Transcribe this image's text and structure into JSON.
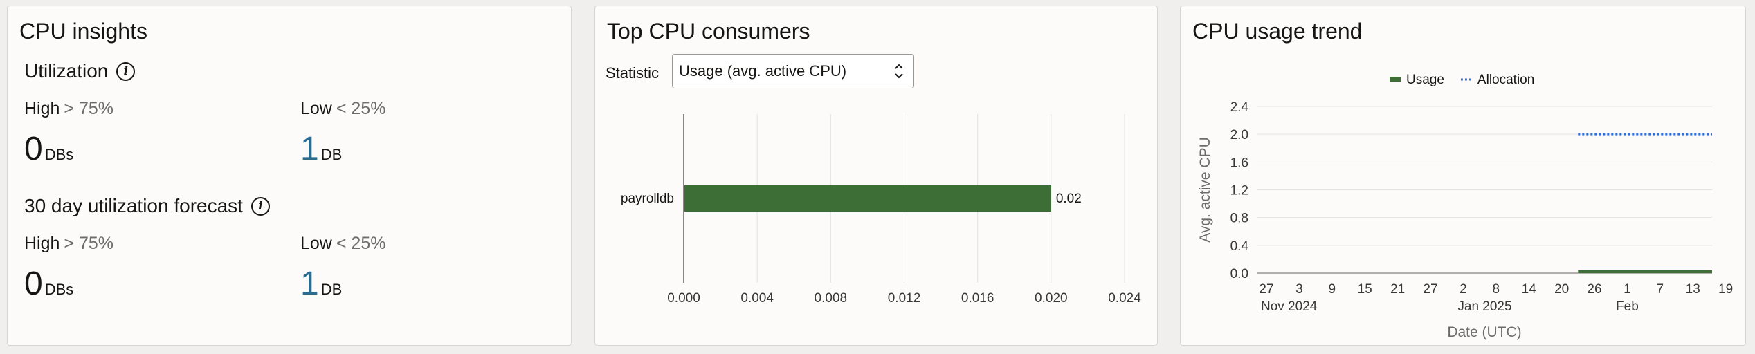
{
  "insights": {
    "title": "CPU insights",
    "utilization": {
      "title": "Utilization",
      "info_icon": "info-icon",
      "high": {
        "label": "High",
        "threshold": "> 75%",
        "count": "0",
        "unit": "DBs"
      },
      "low": {
        "label": "Low",
        "threshold": "< 25%",
        "count": "1",
        "unit": "DB"
      }
    },
    "forecast": {
      "title": "30 day utilization forecast",
      "info_icon": "info-icon",
      "high": {
        "label": "High",
        "threshold": "> 75%",
        "count": "0",
        "unit": "DBs"
      },
      "low": {
        "label": "Low",
        "threshold": "< 25%",
        "count": "1",
        "unit": "DB"
      }
    }
  },
  "consumers": {
    "title": "Top CPU consumers",
    "statistic_label": "Statistic",
    "statistic_value": "Usage (avg. active CPU)",
    "select_icon": "chevron-up-down-icon"
  },
  "trend": {
    "title": "CPU usage trend"
  },
  "chart_data": [
    {
      "type": "bar",
      "orientation": "horizontal",
      "categories": [
        "payrolldb"
      ],
      "values": [
        0.02
      ],
      "data_labels": [
        "0.02"
      ],
      "xlim": [
        0,
        0.024
      ],
      "x_ticks": [
        "0.000",
        "0.004",
        "0.008",
        "0.012",
        "0.016",
        "0.020",
        "0.024"
      ],
      "bar_color": "#3d6e36",
      "grid": true
    },
    {
      "type": "line",
      "xlabel": "Date (UTC)",
      "ylabel": "Avg. active CPU",
      "ylim": [
        0,
        2.4
      ],
      "y_ticks": [
        "0.0",
        "0.4",
        "0.8",
        "1.2",
        "1.6",
        "2.0",
        "2.4"
      ],
      "x_ticks": [
        {
          "day": "27",
          "month": "Nov 2024"
        },
        {
          "day": "3",
          "month": ""
        },
        {
          "day": "9",
          "month": ""
        },
        {
          "day": "15",
          "month": ""
        },
        {
          "day": "21",
          "month": ""
        },
        {
          "day": "27",
          "month": ""
        },
        {
          "day": "2",
          "month": "Jan 2025"
        },
        {
          "day": "8",
          "month": ""
        },
        {
          "day": "14",
          "month": ""
        },
        {
          "day": "20",
          "month": ""
        },
        {
          "day": "26",
          "month": ""
        },
        {
          "day": "1",
          "month": "Feb"
        },
        {
          "day": "7",
          "month": ""
        },
        {
          "day": "13",
          "month": ""
        },
        {
          "day": "19",
          "month": ""
        }
      ],
      "legend_position": "top-center",
      "grid": true,
      "series": [
        {
          "name": "Usage",
          "color": "#3d6e36",
          "style": "area",
          "x_range": [
            "2025-01-23",
            "2025-02-22"
          ],
          "value": 0.02
        },
        {
          "name": "Allocation",
          "color": "#2f6fdc",
          "style": "dotted",
          "x_range": [
            "2025-01-23",
            "2025-02-22"
          ],
          "value": 2.0
        }
      ]
    }
  ]
}
